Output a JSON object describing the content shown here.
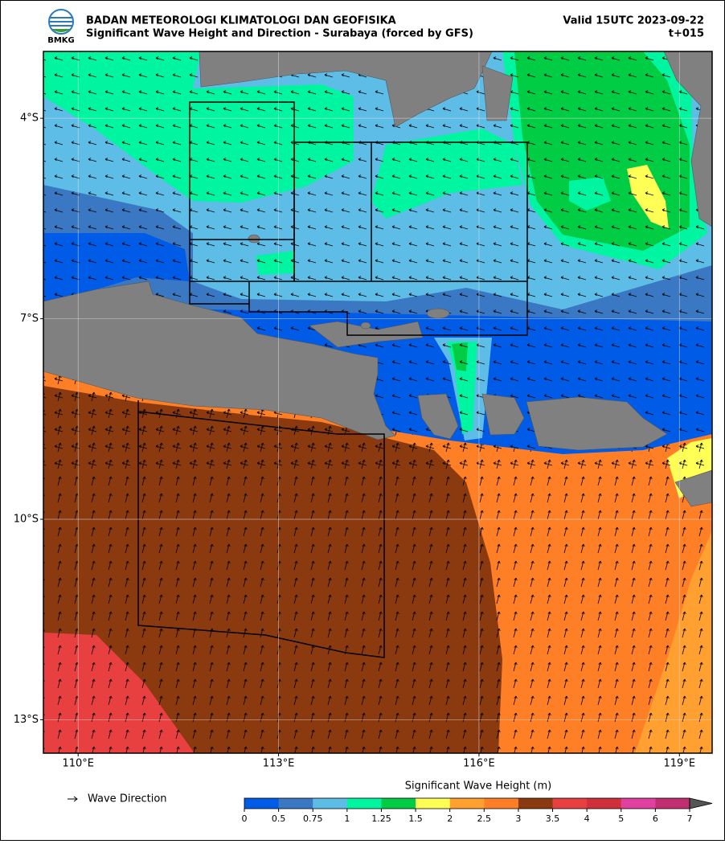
{
  "header": {
    "logo_text": "BMKG",
    "agency": "BADAN METEOROLOGI KLIMATOLOGI DAN GEOFISIKA",
    "title": "Significant Wave Height and Direction - Surabaya (forced by GFS)",
    "valid": "Valid 15UTC 2023-09-22",
    "lead": "t+015"
  },
  "map": {
    "xlim": [
      109.48,
      119.49
    ],
    "ylim": [
      -13.5,
      -3.0
    ],
    "xticks": [
      {
        "value": 110,
        "label": "110°E"
      },
      {
        "value": 113,
        "label": "113°E"
      },
      {
        "value": 116,
        "label": "116°E"
      },
      {
        "value": 119,
        "label": "119°E"
      }
    ],
    "yticks": [
      {
        "value": -4,
        "label": "4°S"
      },
      {
        "value": -7,
        "label": "7°S"
      },
      {
        "value": -10,
        "label": "10°S"
      },
      {
        "value": -13,
        "label": "13°S"
      }
    ],
    "grid": true
  },
  "legend": {
    "label": "Wave Direction"
  },
  "colorbar": {
    "title": "Significant Wave Height (m)",
    "ticks": [
      0,
      0.5,
      0.75,
      1,
      1.25,
      1.5,
      2,
      2.5,
      3,
      3.5,
      4,
      5,
      6,
      7
    ],
    "colors": [
      "#005ce6",
      "#3a78c3",
      "#5ebde6",
      "#00f5a0",
      "#00cc44",
      "#ffff55",
      "#ffa030",
      "#ff7f27",
      "#8b3a0f",
      "#e84040",
      "#d0303a",
      "#e040a0",
      "#c03070"
    ],
    "extend_color": "#555555"
  }
}
